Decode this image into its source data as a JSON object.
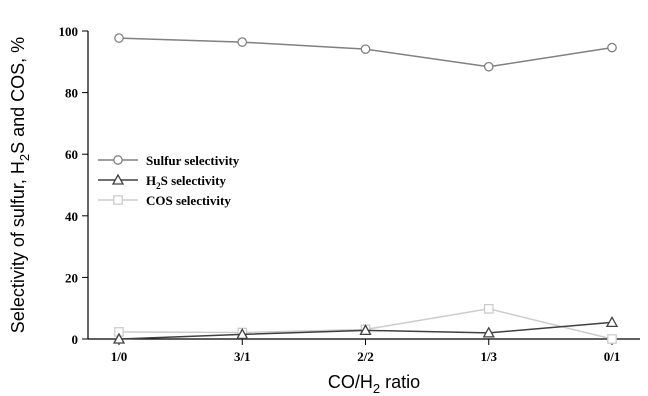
{
  "chart_data": {
    "type": "line",
    "categories": [
      "1/0",
      "3/1",
      "2/2",
      "1/3",
      "0/1"
    ],
    "series": [
      {
        "name": "Sulfur selectivity",
        "values": [
          97.7,
          96.4,
          94.1,
          88.4,
          94.6
        ],
        "color": "#808080",
        "marker": "circle"
      },
      {
        "name_parts": [
          "H",
          "2",
          "S selectivity"
        ],
        "values": [
          0,
          1.5,
          2.8,
          2.0,
          5.4
        ],
        "color": "#404040",
        "marker": "triangle"
      },
      {
        "name": "COS selectivity",
        "values": [
          2.3,
          2.1,
          3.1,
          9.8,
          0
        ],
        "color": "#cccccc",
        "marker": "square"
      }
    ],
    "ylim": [
      0,
      100
    ],
    "yticks": [
      0,
      20,
      40,
      60,
      80,
      100
    ],
    "xlabel_parts": [
      "CO/H",
      "2",
      " ratio"
    ],
    "ylabel_parts": [
      "Selectivity of sulfur, H",
      "2",
      "S and COS, %"
    ],
    "legend_position": "center-left",
    "grid": false
  }
}
